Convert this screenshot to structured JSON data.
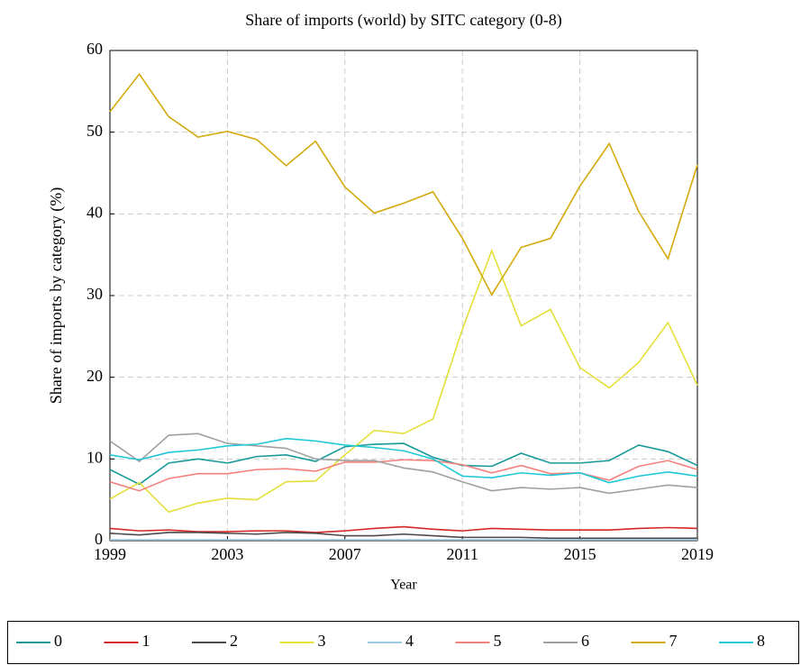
{
  "chart_data": {
    "type": "line",
    "title": "Share of imports (world) by SITC category (0-8)",
    "x_label": "Year",
    "y_label": "Share of imports by category (%)",
    "x": [
      1999,
      2000,
      2001,
      2002,
      2003,
      2004,
      2005,
      2006,
      2007,
      2008,
      2009,
      2010,
      2011,
      2012,
      2013,
      2014,
      2015,
      2016,
      2017,
      2018,
      2019
    ],
    "xlim": [
      1999,
      2019
    ],
    "xticks": [
      1999,
      2003,
      2007,
      2011,
      2015,
      2019
    ],
    "ylim": [
      0,
      60
    ],
    "yticks": [
      0,
      10,
      20,
      30,
      40,
      50,
      60
    ],
    "grid": true,
    "legend": "bottom",
    "series": [
      {
        "name": "0",
        "color": "#17999a",
        "values": [
          8.7,
          6.9,
          9.5,
          10.0,
          9.5,
          10.3,
          10.5,
          9.7,
          11.5,
          11.8,
          11.9,
          10.2,
          9.2,
          9.1,
          10.7,
          9.5,
          9.5,
          9.8,
          11.7,
          10.9,
          9.2
        ]
      },
      {
        "name": "1",
        "color": "#d62728",
        "values": [
          1.5,
          1.2,
          1.3,
          1.1,
          1.1,
          1.2,
          1.2,
          1.0,
          1.2,
          1.5,
          1.7,
          1.4,
          1.2,
          1.5,
          1.4,
          1.3,
          1.3,
          1.3,
          1.5,
          1.6,
          1.5
        ]
      },
      {
        "name": "2",
        "color": "#4a4a4a",
        "values": [
          0.9,
          0.7,
          1.0,
          1.0,
          0.9,
          0.8,
          1.0,
          0.9,
          0.6,
          0.6,
          0.8,
          0.6,
          0.4,
          0.4,
          0.4,
          0.3,
          0.3,
          0.3,
          0.3,
          0.3,
          0.3
        ]
      },
      {
        "name": "3",
        "color": "#e3e03a",
        "values": [
          5.1,
          7.1,
          3.5,
          4.6,
          5.2,
          5.0,
          7.2,
          7.3,
          10.5,
          13.5,
          13.1,
          14.9,
          25.9,
          35.5,
          26.3,
          28.3,
          21.2,
          18.7,
          21.8,
          26.7,
          19.0
        ]
      },
      {
        "name": "4",
        "color": "#9ecae1",
        "values": [
          0.1,
          0.1,
          0.1,
          0.1,
          0.1,
          0.1,
          0.1,
          0.1,
          0.1,
          0.1,
          0.1,
          0.1,
          0.1,
          0.1,
          0.1,
          0.1,
          0.1,
          0.1,
          0.1,
          0.1,
          0.1
        ]
      },
      {
        "name": "5",
        "color": "#f4817c",
        "values": [
          7.2,
          6.1,
          7.6,
          8.2,
          8.2,
          8.7,
          8.8,
          8.5,
          9.6,
          9.6,
          9.9,
          9.8,
          9.3,
          8.3,
          9.2,
          8.2,
          8.3,
          7.4,
          9.1,
          9.8,
          8.7
        ]
      },
      {
        "name": "6",
        "color": "#a0a0a0",
        "values": [
          12.2,
          9.7,
          12.9,
          13.1,
          11.9,
          11.6,
          11.3,
          10.0,
          9.8,
          9.8,
          8.9,
          8.4,
          7.2,
          6.1,
          6.5,
          6.3,
          6.5,
          5.8,
          6.3,
          6.8,
          6.5
        ]
      },
      {
        "name": "7",
        "color": "#d4a90a",
        "values": [
          52.5,
          57.1,
          51.9,
          49.4,
          50.1,
          49.1,
          45.9,
          48.9,
          43.3,
          40.1,
          41.3,
          42.7,
          37.0,
          30.1,
          35.9,
          37.0,
          43.4,
          48.6,
          40.3,
          34.5,
          46.0
        ]
      },
      {
        "name": "8",
        "color": "#1ec8d6",
        "values": [
          10.5,
          9.9,
          10.8,
          11.1,
          11.6,
          11.8,
          12.5,
          12.2,
          11.7,
          11.4,
          11.0,
          10.0,
          7.9,
          7.7,
          8.3,
          8.0,
          8.3,
          7.1,
          7.9,
          8.4,
          7.9
        ]
      }
    ]
  }
}
